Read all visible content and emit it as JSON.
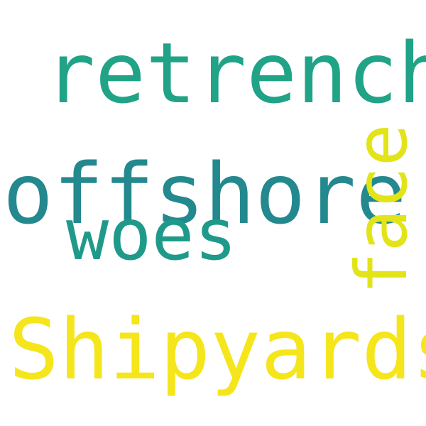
{
  "words": [
    {
      "text": "retrench",
      "color": "#20a386"
    },
    {
      "text": "offshore",
      "color": "#23898e"
    },
    {
      "text": "woes",
      "color": "#1f9a8a"
    },
    {
      "text": "face",
      "color": "#e2e418"
    },
    {
      "text": "Shipyards",
      "color": "#f5e51b"
    }
  ]
}
